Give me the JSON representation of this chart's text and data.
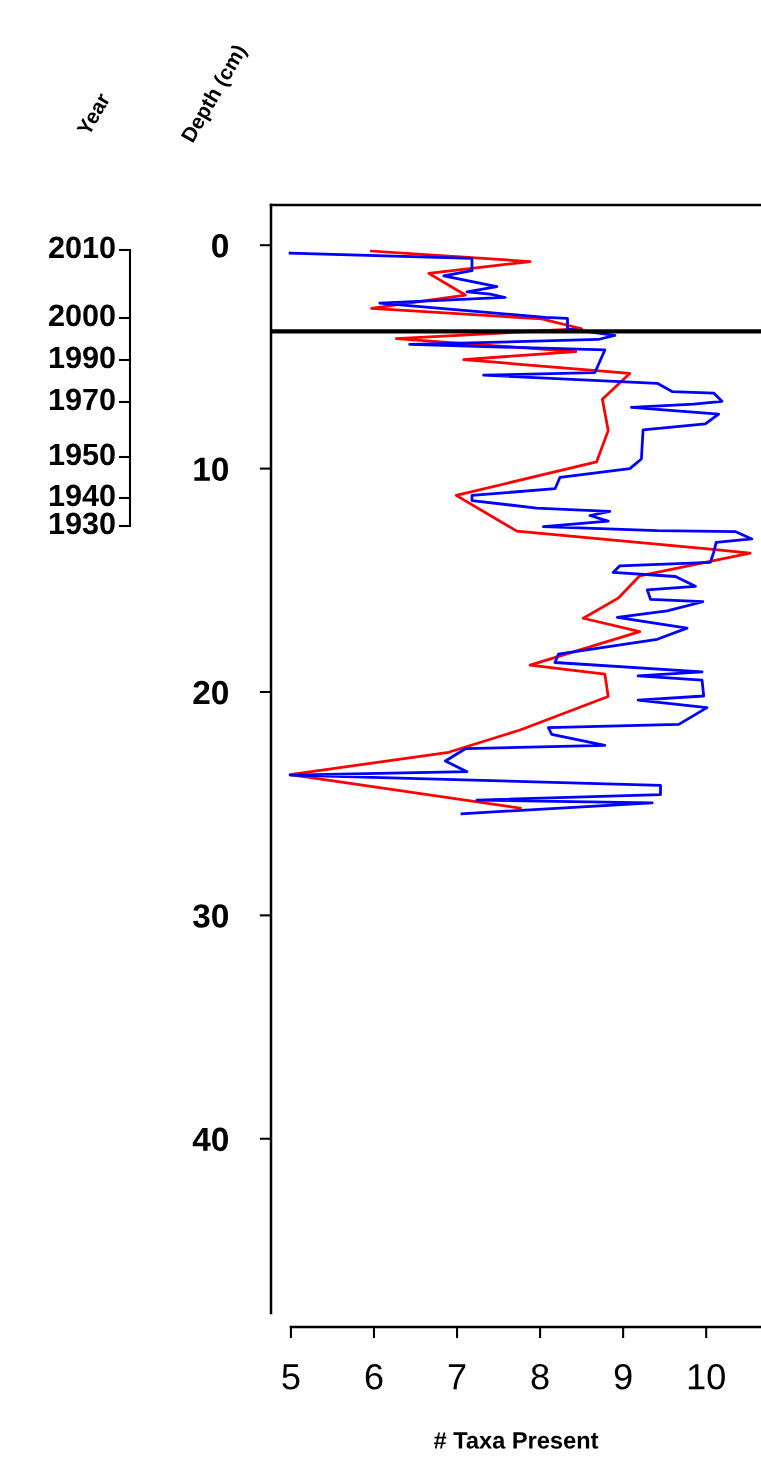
{
  "chart_data": {
    "type": "line",
    "xlabel": "# Taxa Present",
    "ylabel": "Depth (cm)",
    "xlim": [
      4.76,
      10.66
    ],
    "xticks": [
      5,
      6,
      7,
      8,
      9,
      10
    ],
    "ylim": [
      47.8,
      -1.8
    ],
    "yticks": [
      0,
      10,
      20,
      30,
      40
    ],
    "annotations": [
      "Year",
      "2010",
      "2000",
      "1990",
      "1970",
      "1950",
      "1940",
      "1930"
    ],
    "grid": false,
    "legend": false,
    "marker": "none",
    "line_style": "solid",
    "ref_lines": [
      {
        "axis": "y",
        "value": 3.86,
        "label": null,
        "color": "#000000"
      }
    ],
    "series": [
      {
        "color": "#ff0000",
        "x": [
          5.97,
          7.88,
          6.66,
          7.1,
          5.97,
          8.02,
          8.5,
          6.27,
          8.43,
          7.08,
          9.08,
          8.75,
          8.82,
          8.68,
          6.99,
          7.72,
          10.05,
          10.53,
          9.2,
          8.94,
          8.52,
          9.2,
          7.88,
          8.78,
          8.82,
          7.76,
          6.9,
          4.99,
          7.76
        ],
        "values": [
          0.26,
          0.73,
          1.26,
          2.23,
          2.83,
          3.3,
          3.74,
          4.18,
          4.76,
          5.12,
          5.74,
          6.9,
          8.3,
          9.7,
          11.2,
          12.8,
          13.6,
          13.78,
          14.8,
          15.8,
          16.7,
          17.3,
          18.8,
          19.2,
          20.2,
          21.7,
          22.7,
          23.7,
          25.2
        ]
      },
      {
        "color": "#0000ff",
        "x": [
          4.99,
          7.18,
          7.18,
          6.84,
          7.48,
          7.12,
          7.4,
          7.58,
          6.07,
          8.06,
          8.33,
          8.33,
          8.9,
          8.7,
          6.43,
          8.78,
          8.66,
          7.32,
          9.41,
          9.59,
          10.09,
          10.19,
          9.85,
          9.1,
          10.15,
          9.99,
          9.24,
          9.22,
          9.08,
          8.24,
          8.18,
          7.18,
          7.18,
          7.96,
          8.84,
          8.6,
          8.82,
          8.04,
          9.41,
          10.35,
          10.55,
          10.12,
          10.09,
          10.05,
          8.96,
          8.88,
          9.63,
          9.87,
          9.29,
          9.33,
          9.96,
          9.53,
          8.93,
          9.77,
          9.41,
          8.22,
          8.18,
          9.95,
          9.18,
          9.95,
          9.97,
          9.18,
          10.01,
          9.67,
          8.1,
          8.14,
          8.78,
          7.1,
          6.86,
          7.12,
          4.99,
          9.45,
          9.45,
          7.24,
          9.35,
          7.06
        ],
        "values": [
          0.35,
          0.59,
          1.14,
          1.37,
          1.85,
          2.09,
          2.19,
          2.34,
          2.59,
          3.23,
          3.28,
          3.74,
          4.04,
          4.22,
          4.44,
          4.69,
          5.7,
          5.82,
          6.18,
          6.55,
          6.62,
          6.99,
          7.11,
          7.26,
          7.56,
          8.0,
          8.27,
          9.57,
          10.0,
          10.39,
          10.9,
          11.2,
          11.43,
          11.77,
          11.92,
          12.1,
          12.35,
          12.6,
          12.78,
          12.82,
          13.15,
          13.3,
          13.75,
          14.2,
          14.35,
          14.65,
          14.83,
          15.27,
          15.43,
          15.85,
          15.96,
          16.37,
          16.66,
          17.14,
          17.64,
          18.31,
          18.68,
          19.1,
          19.28,
          19.47,
          20.18,
          20.36,
          20.7,
          21.45,
          21.6,
          21.9,
          22.39,
          22.54,
          23.09,
          23.57,
          23.72,
          24.18,
          24.59,
          24.84,
          24.96,
          25.45
        ]
      }
    ]
  }
}
